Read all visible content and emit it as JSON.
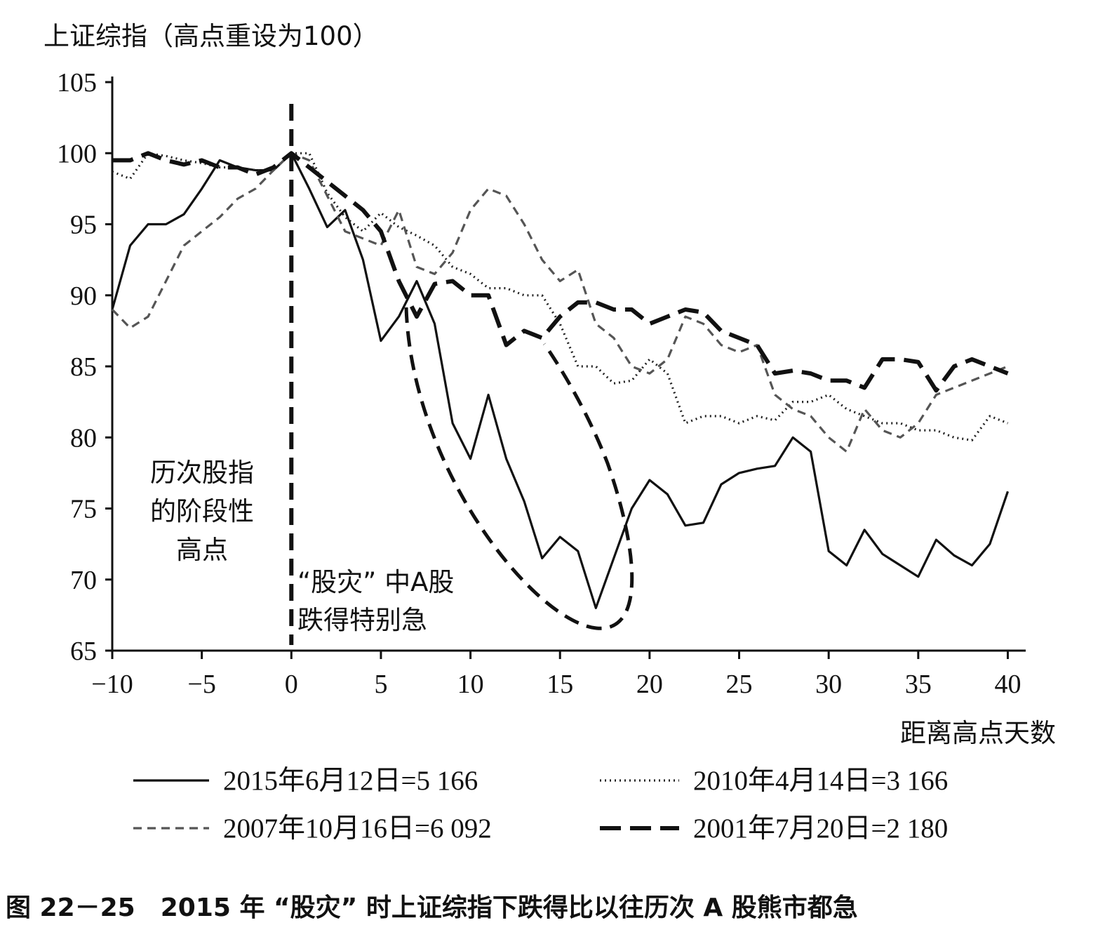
{
  "chart_data": {
    "type": "line",
    "ylabel": "上证综指（高点重设为100）",
    "xlabel": "距离高点天数",
    "caption": "图 22－25　2015 年 “股灾” 时上证综指下跌得比以往历次 A 股熊市都急",
    "xlim": [
      -10,
      41
    ],
    "ylim": [
      65,
      105
    ],
    "xticks": [
      -10,
      -5,
      0,
      5,
      10,
      15,
      20,
      25,
      30,
      35,
      40
    ],
    "xtick_labels": [
      "−10",
      "−5",
      "0",
      "5",
      "10",
      "15",
      "20",
      "25",
      "30",
      "35",
      "40"
    ],
    "yticks": [
      65,
      70,
      75,
      80,
      85,
      90,
      95,
      100,
      105
    ],
    "ytick_labels": [
      "65",
      "70",
      "75",
      "80",
      "85",
      "90",
      "95",
      "100",
      "105"
    ],
    "peak_marker_x": 0,
    "annotations": {
      "peak_text": [
        "历次股指",
        "的阶段性",
        "高点"
      ],
      "crash_text": [
        "“股灾” 中A股",
        "跌得特别急"
      ]
    },
    "series": [
      {
        "name": "2015年6月12日=5 166",
        "style": "solid",
        "x": [
          -10,
          -9,
          -8,
          -7,
          -6,
          -5,
          -4,
          -3,
          -2,
          -1,
          0,
          1,
          2,
          3,
          4,
          5,
          6,
          7,
          8,
          9,
          10,
          11,
          12,
          13,
          14,
          15,
          16,
          17,
          18,
          19,
          20,
          21,
          22,
          23,
          24,
          25,
          26,
          27,
          28,
          29,
          30,
          31,
          32,
          33,
          34,
          35,
          36,
          37,
          38,
          39,
          40
        ],
        "y": [
          89,
          93.5,
          95,
          95,
          95.7,
          97.5,
          99.5,
          99,
          98.8,
          98.8,
          100,
          97.5,
          94.8,
          96,
          92.5,
          86.8,
          88.5,
          91,
          88,
          81,
          78.5,
          83,
          78.5,
          75.5,
          71.5,
          73,
          72,
          68,
          71.5,
          75,
          77,
          76,
          73.8,
          74,
          76.7,
          77.5,
          77.8,
          78,
          80,
          79,
          72,
          71,
          73.5,
          71.8,
          71,
          70.2,
          72.8,
          71.7,
          71,
          72.5,
          76.2
        ]
      },
      {
        "name": "2010年4月14日=3 166",
        "style": "dotted",
        "x": [
          -10,
          -9,
          -8,
          -7,
          -6,
          -5,
          -4,
          -3,
          -2,
          -1,
          0,
          1,
          2,
          3,
          4,
          5,
          6,
          7,
          8,
          9,
          10,
          11,
          12,
          13,
          14,
          15,
          16,
          17,
          18,
          19,
          20,
          21,
          22,
          23,
          24,
          25,
          26,
          27,
          28,
          29,
          30,
          31,
          32,
          33,
          34,
          35,
          36,
          37,
          38,
          39,
          40
        ],
        "y": [
          98.7,
          98.2,
          100,
          99.8,
          99.5,
          99.3,
          99,
          99,
          98.8,
          98.8,
          100,
          100,
          97.2,
          95.5,
          94.5,
          95.8,
          94.8,
          94.2,
          93.5,
          92,
          91.5,
          90.5,
          90.5,
          90,
          90,
          88,
          85,
          85,
          83.8,
          84,
          85.5,
          84.5,
          81,
          81.5,
          81.5,
          81,
          81.5,
          81.2,
          82.5,
          82.5,
          83,
          82,
          81.5,
          81,
          81,
          80.5,
          80.5,
          80,
          79.8,
          81.5,
          81
        ]
      },
      {
        "name": "2007年10月16日=6 092",
        "style": "dashed",
        "x": [
          -10,
          -9,
          -8,
          -7,
          -6,
          -5,
          -4,
          -3,
          -2,
          -1,
          0,
          1,
          2,
          3,
          4,
          5,
          6,
          7,
          8,
          9,
          10,
          11,
          12,
          13,
          14,
          15,
          16,
          17,
          18,
          19,
          20,
          21,
          22,
          23,
          24,
          25,
          26,
          27,
          28,
          29,
          30,
          31,
          32,
          33,
          34,
          35,
          36,
          37,
          38,
          39,
          40
        ],
        "y": [
          89,
          87.7,
          88.5,
          91,
          93.5,
          94.5,
          95.5,
          96.8,
          97.5,
          98.8,
          100,
          99.5,
          97,
          94.5,
          94,
          93.5,
          96,
          92,
          91.5,
          93,
          96,
          97.5,
          97,
          95,
          92.5,
          91,
          91.8,
          88,
          87,
          85,
          84.5,
          85.5,
          88.5,
          88,
          86.5,
          86,
          86.5,
          83,
          82,
          81.5,
          80,
          79,
          82,
          80.5,
          80,
          81,
          83,
          83.5,
          84,
          84.5,
          85
        ]
      },
      {
        "name": "2001年7月20日=2 180",
        "style": "longdash",
        "x": [
          -10,
          -9,
          -8,
          -7,
          -6,
          -5,
          -4,
          -3,
          -2,
          -1,
          0,
          1,
          2,
          3,
          4,
          5,
          6,
          7,
          8,
          9,
          10,
          11,
          12,
          13,
          14,
          15,
          16,
          17,
          18,
          19,
          20,
          21,
          22,
          23,
          24,
          25,
          26,
          27,
          28,
          29,
          30,
          31,
          32,
          33,
          34,
          35,
          36,
          37,
          38,
          39,
          40
        ],
        "y": [
          99.5,
          99.5,
          100,
          99.5,
          99.2,
          99.5,
          99,
          99,
          98.5,
          99,
          100,
          99,
          98,
          97,
          96,
          94.5,
          91,
          88.5,
          90.8,
          91,
          90,
          90,
          86.5,
          87.5,
          87,
          88.5,
          89.5,
          89.5,
          89,
          89,
          88,
          88.5,
          89,
          88.8,
          87.5,
          87,
          86.5,
          84.5,
          84.7,
          84.5,
          84,
          84,
          83.5,
          85.5,
          85.5,
          85.3,
          83.3,
          85,
          85.5,
          85,
          84.5
        ]
      }
    ]
  }
}
